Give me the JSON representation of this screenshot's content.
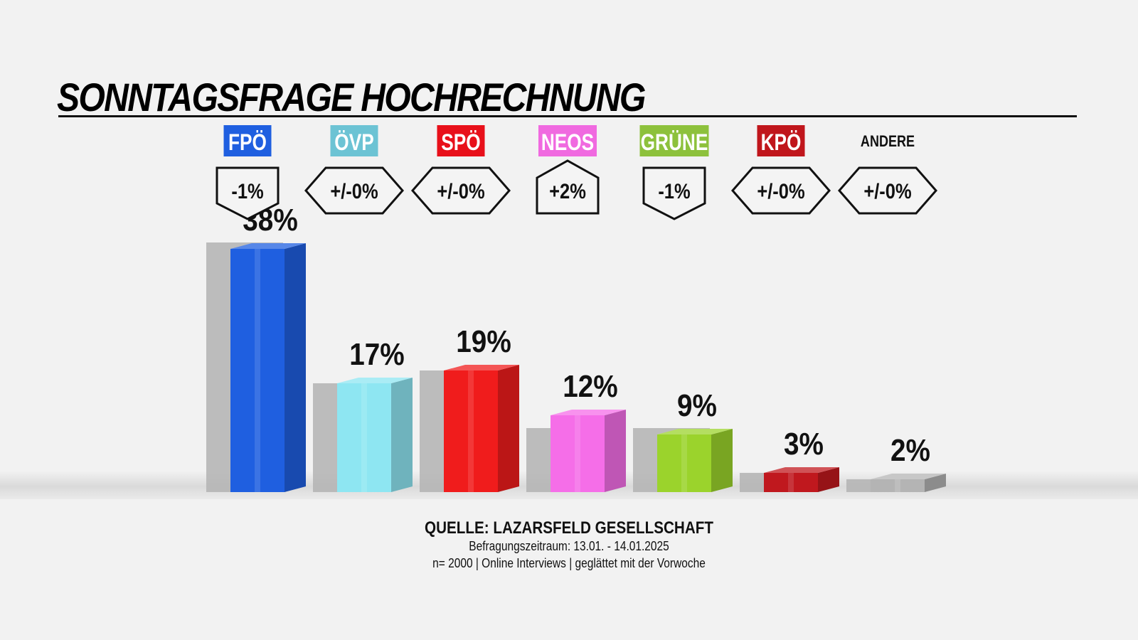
{
  "title": "SONNTAGSFRAGE HOCHRECHNUNG",
  "footer": {
    "source": "QUELLE: LAZARSFELD GESELLSCHAFT",
    "period": "Befragungszeitraum: 13.01. - 14.01.2025",
    "sample": "n= 2000 | Online Interviews | geglättet mit der Vorwoche"
  },
  "chart_data": {
    "type": "bar",
    "categories": [
      "FPÖ",
      "ÖVP",
      "SPÖ",
      "NEOS",
      "GRÜNE",
      "KPÖ",
      "ANDERE"
    ],
    "values": [
      38,
      17,
      19,
      12,
      9,
      3,
      2
    ],
    "value_labels": [
      "38%",
      "17%",
      "19%",
      "12%",
      "9%",
      "3%",
      "2%"
    ],
    "previous_values": [
      39,
      17,
      19,
      10,
      10,
      3,
      2
    ],
    "changes": [
      "-1%",
      "+/-0%",
      "+/-0%",
      "+2%",
      "-1%",
      "+/-0%",
      "+/-0%"
    ],
    "change_direction": [
      "down",
      "flat",
      "flat",
      "up",
      "down",
      "flat",
      "flat"
    ],
    "colors": [
      "#1f5fe0",
      "#8ee6f2",
      "#f01c1c",
      "#f56ee8",
      "#9bd32c",
      "#c0181e",
      "#b4b4b4"
    ],
    "label_colors": [
      "#1f5fe0",
      "#6cc3d4",
      "#e8101a",
      "#f06ae0",
      "#8dc13c",
      "#c0161c",
      ""
    ],
    "ylim": [
      0,
      40
    ],
    "grid": false
  }
}
